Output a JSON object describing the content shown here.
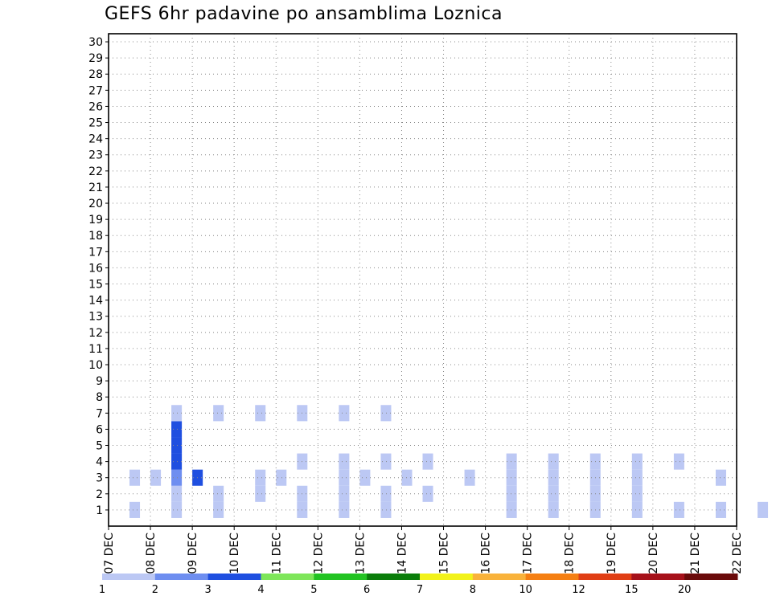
{
  "chart_data": {
    "type": "heatmap",
    "title": "GEFS 6hr padavine po ansamblima Loznica",
    "xlabel": "",
    "ylabel": "",
    "x_tick_labels": [
      "07 DEC",
      "08 DEC",
      "09 DEC",
      "10 DEC",
      "11 DEC",
      "12 DEC",
      "13 DEC",
      "14 DEC",
      "15 DEC",
      "16 DEC",
      "17 DEC",
      "18 DEC",
      "19 DEC",
      "20 DEC",
      "21 DEC",
      "22 DEC"
    ],
    "y_tick_labels": [
      "1",
      "2",
      "3",
      "4",
      "5",
      "6",
      "7",
      "8",
      "9",
      "10",
      "11",
      "12",
      "13",
      "14",
      "15",
      "16",
      "17",
      "18",
      "19",
      "20",
      "21",
      "22",
      "23",
      "24",
      "25",
      "26",
      "27",
      "28",
      "29",
      "30"
    ],
    "y_range": [
      0,
      30
    ],
    "grid": true,
    "legend_levels": [
      "1",
      "2",
      "3",
      "4",
      "5",
      "6",
      "7",
      "8",
      "10",
      "12",
      "15",
      "20"
    ],
    "legend_colors": [
      "#bcc8f4",
      "#6e8ef0",
      "#1f4fe0",
      "#7ee65a",
      "#22c322",
      "#0a7d0a",
      "#f2f21a",
      "#f9b23a",
      "#f57f12",
      "#e03e14",
      "#a6111a",
      "#6a0a0a"
    ],
    "cells": [
      [
        0.5,
        1,
        1
      ],
      [
        1.5,
        1,
        1
      ],
      [
        2.5,
        1,
        1
      ],
      [
        4.5,
        1,
        1
      ],
      [
        5.5,
        1,
        1
      ],
      [
        6.5,
        1,
        1
      ],
      [
        9.5,
        1,
        1
      ],
      [
        10.5,
        1,
        1
      ],
      [
        11.5,
        1,
        1
      ],
      [
        12.5,
        1,
        1
      ],
      [
        13.5,
        1,
        1
      ],
      [
        14.5,
        1,
        1
      ],
      [
        15.5,
        1,
        1
      ],
      [
        16.5,
        1,
        1
      ],
      [
        1.5,
        2,
        1
      ],
      [
        2.5,
        2,
        1
      ],
      [
        3.5,
        2,
        1
      ],
      [
        4.5,
        2,
        1
      ],
      [
        5.5,
        2,
        1
      ],
      [
        6.5,
        2,
        1
      ],
      [
        7.5,
        2,
        1
      ],
      [
        9.5,
        2,
        1
      ],
      [
        10.5,
        2,
        1
      ],
      [
        11.5,
        2,
        1
      ],
      [
        12.5,
        2,
        1
      ],
      [
        1,
        3,
        1
      ],
      [
        1.5,
        3,
        2
      ],
      [
        2,
        3,
        3
      ],
      [
        0.5,
        3,
        1
      ],
      [
        3.5,
        3,
        1
      ],
      [
        4,
        3,
        1
      ],
      [
        5.5,
        3,
        1
      ],
      [
        6,
        3,
        1
      ],
      [
        7,
        3,
        1
      ],
      [
        8.5,
        3,
        1
      ],
      [
        1.5,
        4,
        3
      ],
      [
        1.5,
        5,
        3
      ],
      [
        1.5,
        6,
        3
      ],
      [
        4.5,
        4,
        1
      ],
      [
        5.5,
        4,
        1
      ],
      [
        6.5,
        4,
        1
      ],
      [
        7.5,
        4,
        1
      ],
      [
        9.5,
        4,
        1
      ],
      [
        10.5,
        4,
        1
      ],
      [
        11.5,
        4,
        1
      ],
      [
        12.5,
        4,
        1
      ],
      [
        13.5,
        4,
        1
      ],
      [
        9.5,
        3,
        1
      ],
      [
        10.5,
        3,
        1
      ],
      [
        11.5,
        3,
        1
      ],
      [
        12.5,
        3,
        1
      ],
      [
        14.5,
        3,
        1
      ],
      [
        1.5,
        7,
        1
      ],
      [
        2.5,
        7,
        1
      ],
      [
        3.5,
        7,
        1
      ],
      [
        4.5,
        7,
        1
      ],
      [
        5.5,
        7,
        1
      ],
      [
        6.5,
        7,
        1
      ]
    ]
  }
}
